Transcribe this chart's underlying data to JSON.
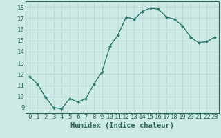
{
  "x": [
    0,
    1,
    2,
    3,
    4,
    5,
    6,
    7,
    8,
    9,
    10,
    11,
    12,
    13,
    14,
    15,
    16,
    17,
    18,
    19,
    20,
    21,
    22,
    23
  ],
  "y": [
    11.8,
    11.1,
    9.9,
    9.0,
    8.9,
    9.8,
    9.5,
    9.8,
    11.1,
    12.2,
    14.5,
    15.5,
    17.1,
    16.9,
    17.6,
    17.9,
    17.8,
    17.1,
    16.9,
    16.3,
    15.3,
    14.8,
    14.9,
    15.3
  ],
  "line_color": "#2a7a6a",
  "marker": "D",
  "marker_size": 2.0,
  "bg_color": "#ceeae7",
  "grid_color": "#b8d8d4",
  "xlabel": "Humidex (Indice chaleur)",
  "xlim": [
    -0.5,
    23.5
  ],
  "ylim": [
    8.5,
    18.5
  ],
  "yticks": [
    9,
    10,
    11,
    12,
    13,
    14,
    15,
    16,
    17,
    18
  ],
  "xticks": [
    0,
    1,
    2,
    3,
    4,
    5,
    6,
    7,
    8,
    9,
    10,
    11,
    12,
    13,
    14,
    15,
    16,
    17,
    18,
    19,
    20,
    21,
    22,
    23
  ],
  "tick_label_color": "#2a6858",
  "axis_color": "#2a6858",
  "xlabel_color": "#2a6858",
  "xlabel_fontsize": 7.5,
  "tick_fontsize": 6.5,
  "line_width": 1.0
}
